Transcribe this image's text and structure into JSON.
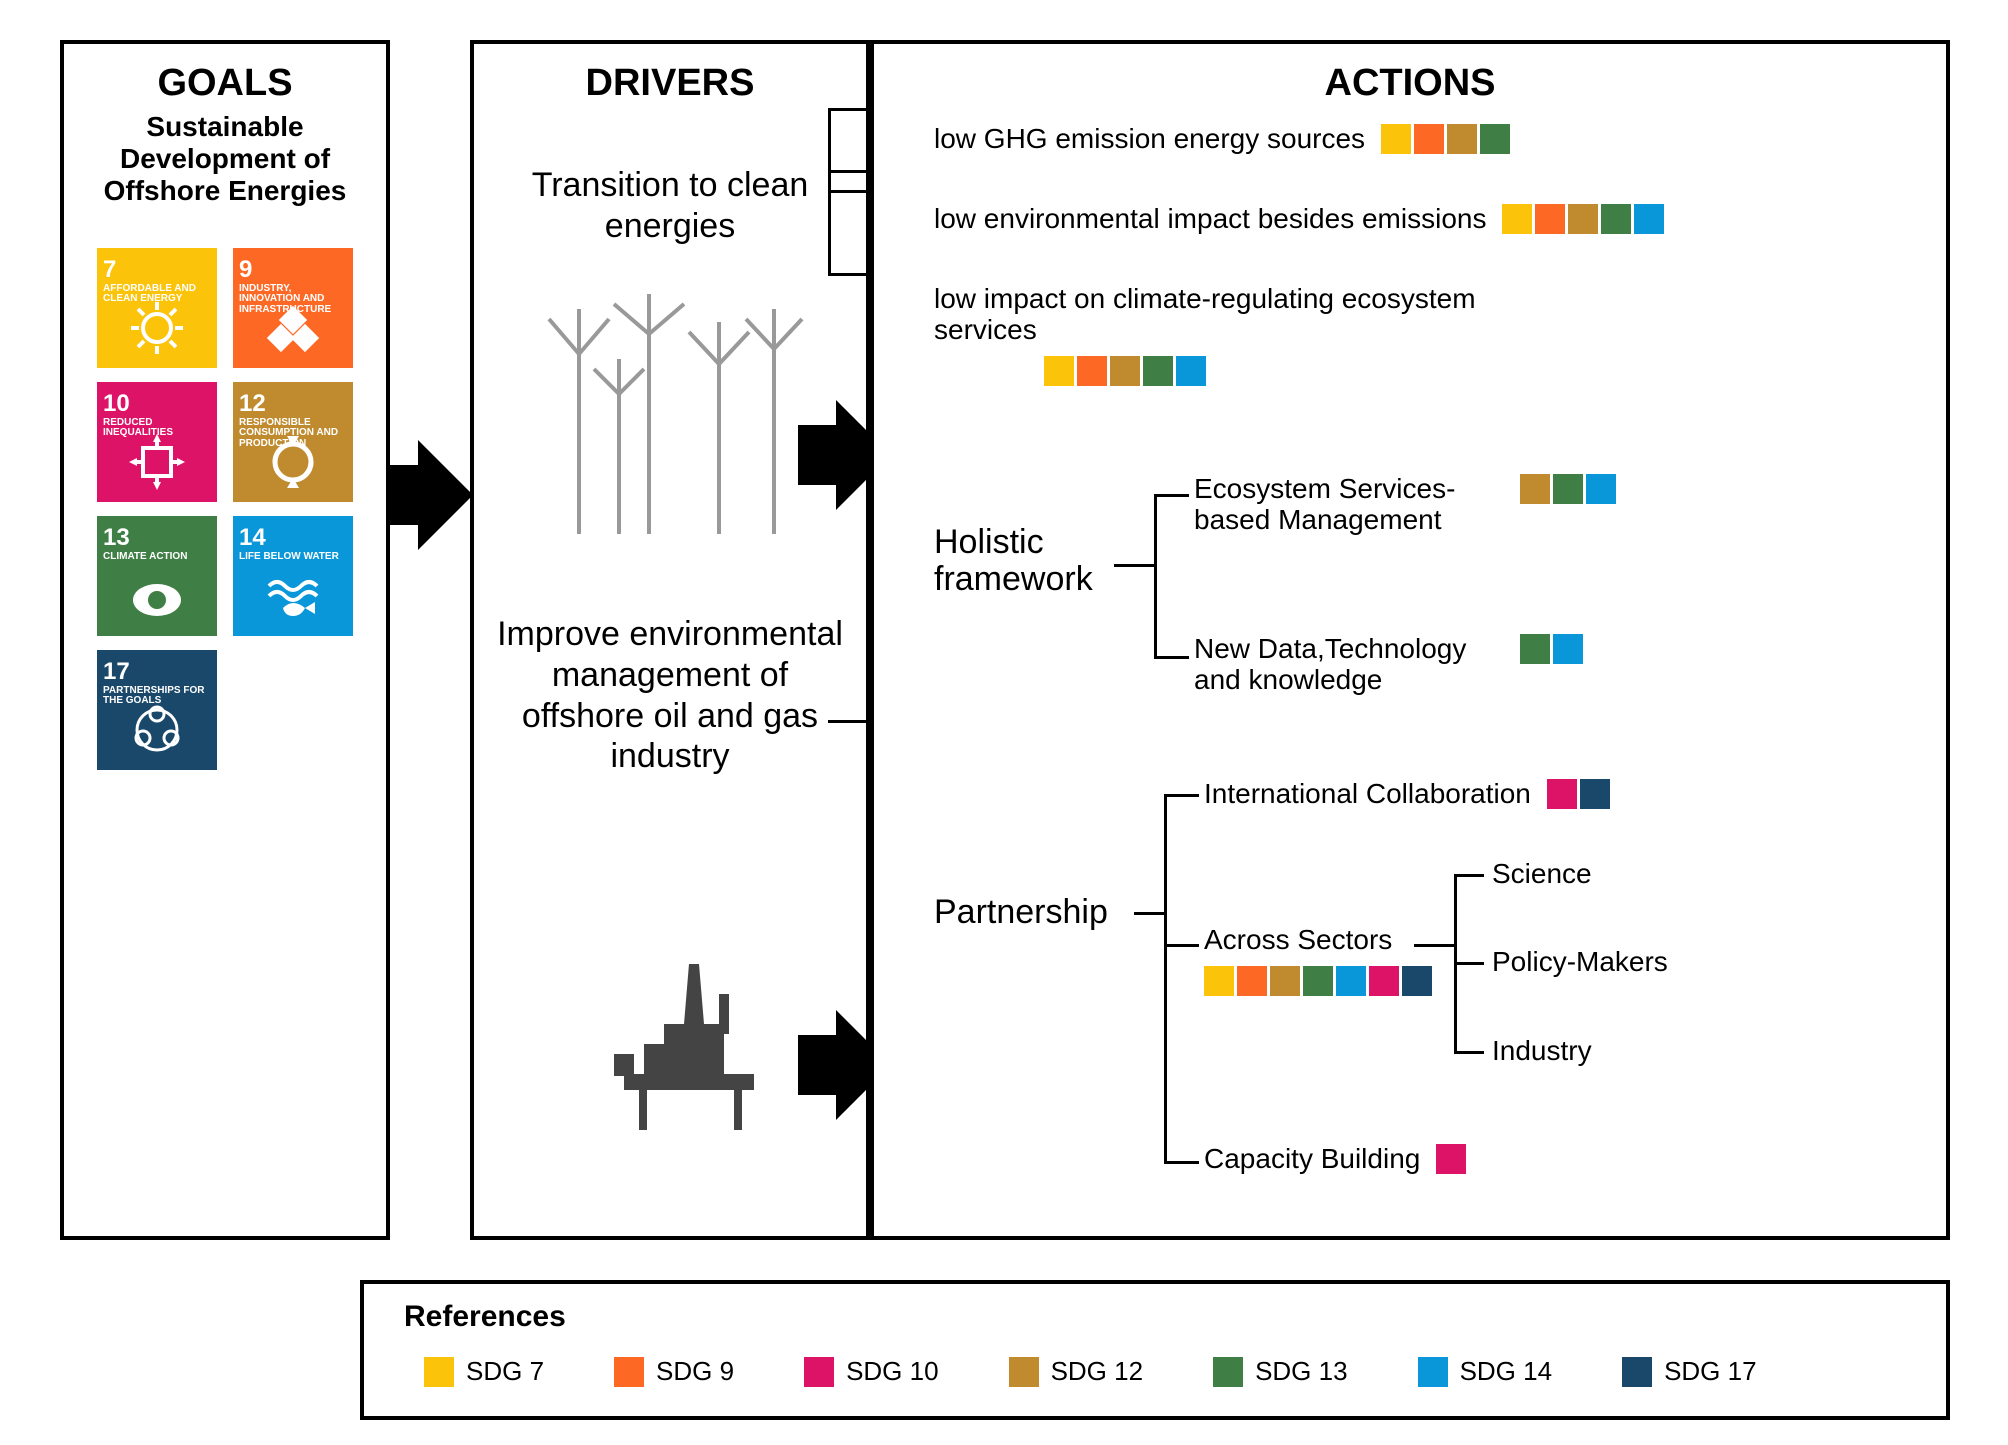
{
  "goals_panel": {
    "title": "GOALS",
    "subtitle": "Sustainable Development of Offshore Energies",
    "sdg_tiles": [
      {
        "num": "7",
        "label": "AFFORDABLE AND CLEAN ENERGY",
        "color": "#fcc30b"
      },
      {
        "num": "9",
        "label": "INDUSTRY, INNOVATION AND INFRASTRUCTURE",
        "color": "#fd6925"
      },
      {
        "num": "10",
        "label": "REDUCED INEQUALITIES",
        "color": "#dd1367"
      },
      {
        "num": "12",
        "label": "RESPONSIBLE CONSUMPTION AND PRODUCTION",
        "color": "#bf8b2e"
      },
      {
        "num": "13",
        "label": "CLIMATE ACTION",
        "color": "#3f7e44"
      },
      {
        "num": "14",
        "label": "LIFE BELOW WATER",
        "color": "#0a97d9"
      },
      {
        "num": "17",
        "label": "PARTNERSHIPS FOR THE GOALS",
        "color": "#19486a"
      }
    ]
  },
  "drivers_panel": {
    "title": "DRIVERS",
    "driver1": "Transition to clean energies",
    "driver2": "Improve environmental management of offshore oil and gas industry"
  },
  "actions_panel": {
    "title": "ACTIONS",
    "action1": {
      "text": "low GHG emission  energy sources",
      "swatches": [
        "#fcc30b",
        "#fd6925",
        "#bf8b2e",
        "#3f7e44"
      ]
    },
    "action2": {
      "text": "low environmental impact besides emissions",
      "swatches": [
        "#fcc30b",
        "#fd6925",
        "#bf8b2e",
        "#3f7e44",
        "#0a97d9"
      ]
    },
    "action3": {
      "text": "low impact on climate-regulating ecosystem services",
      "swatches": [
        "#fcc30b",
        "#fd6925",
        "#bf8b2e",
        "#3f7e44",
        "#0a97d9"
      ]
    },
    "holistic_label": "Holistic framework",
    "hol1": {
      "text": "Ecosystem Services- based Management",
      "swatches": [
        "#bf8b2e",
        "#3f7e44",
        "#0a97d9"
      ]
    },
    "hol2": {
      "text": "New Data,Technology and knowledge",
      "swatches": [
        "#3f7e44",
        "#0a97d9"
      ]
    },
    "partnership_label": "Partnership",
    "part1": {
      "text": "International Collaboration",
      "swatches": [
        "#dd1367",
        "#19486a"
      ]
    },
    "part2": {
      "text": "Across Sectors",
      "swatches": [
        "#fcc30b",
        "#fd6925",
        "#bf8b2e",
        "#3f7e44",
        "#0a97d9",
        "#dd1367",
        "#19486a"
      ]
    },
    "part2_children": {
      "a": "Science",
      "b": "Policy-Makers",
      "c": "Industry"
    },
    "part3": {
      "text": "Capacity Building",
      "swatches": [
        "#dd1367"
      ]
    }
  },
  "references": {
    "title": "References",
    "items": [
      {
        "label": "SDG 7",
        "color": "#fcc30b"
      },
      {
        "label": "SDG 9",
        "color": "#fd6925"
      },
      {
        "label": "SDG 10",
        "color": "#dd1367"
      },
      {
        "label": "SDG 12",
        "color": "#bf8b2e"
      },
      {
        "label": "SDG 13",
        "color": "#3f7e44"
      },
      {
        "label": "SDG 14",
        "color": "#0a97d9"
      },
      {
        "label": "SDG 17",
        "color": "#19486a"
      }
    ]
  },
  "style": {
    "panel_border_width": 4,
    "panel_border_color": "#000000",
    "background": "#ffffff",
    "title_fontsize": 38,
    "body_fontsize": 28,
    "driver_fontsize": 34,
    "swatch_size": 30,
    "arrow_color": "#000000"
  }
}
